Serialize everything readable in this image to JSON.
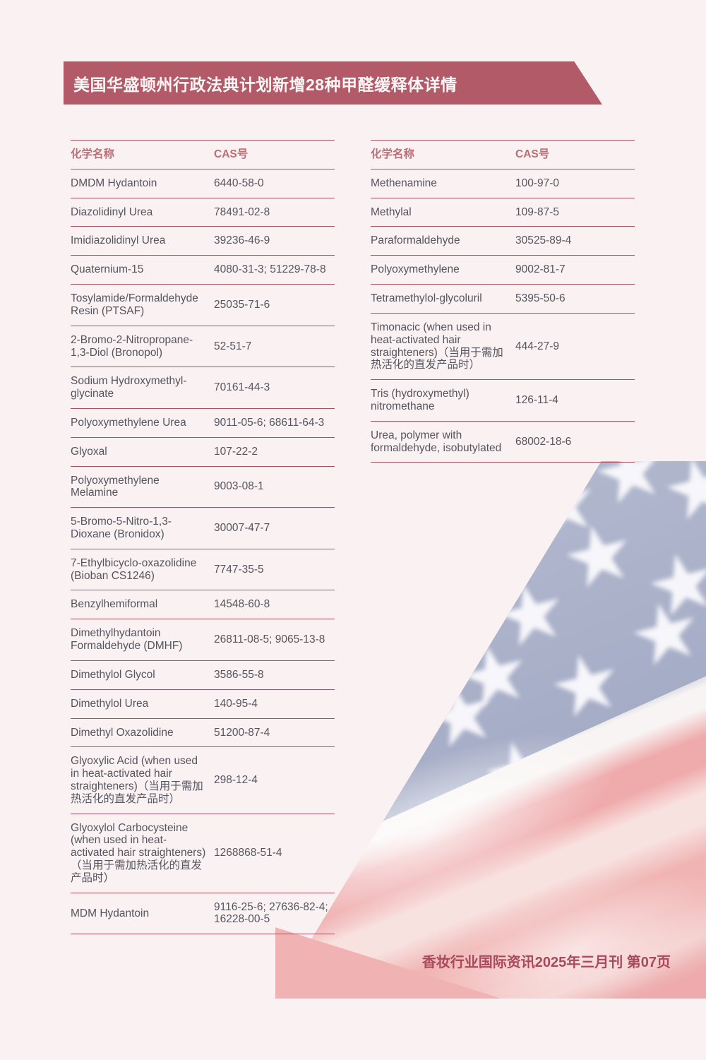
{
  "banner": {
    "title": "美国华盛顿州行政法典计划新增28种甲醛缓释体详情"
  },
  "tables": {
    "name_header": "化学名称",
    "cas_header": "CAS号",
    "left": [
      {
        "name": "DMDM Hydantoin",
        "cas": "6440-58-0"
      },
      {
        "name": "Diazolidinyl Urea",
        "cas": "78491-02-8"
      },
      {
        "name": "Imidiazolidinyl Urea",
        "cas": "39236-46-9"
      },
      {
        "name": "Quaternium-15",
        "cas": "4080-31-3; 51229-78-8"
      },
      {
        "name": "Tosylamide/Formaldehyde Resin (PTSAF)",
        "cas": "25035-71-6"
      },
      {
        "name": "2-Bromo-2-Nitropropane-1,3-Diol (Bronopol)",
        "cas": "52-51-7"
      },
      {
        "name": "Sodium Hydroxymethyl-glycinate",
        "cas": "70161-44-3"
      },
      {
        "name": "Polyoxymethylene Urea",
        "cas": "9011-05-6; 68611-64-3"
      },
      {
        "name": "Glyoxal",
        "cas": "107-22-2"
      },
      {
        "name": "Polyoxymethylene Melamine",
        "cas": "9003-08-1"
      },
      {
        "name": "5-Bromo-5-Nitro-1,3-Dioxane (Bronidox)",
        "cas": "30007-47-7"
      },
      {
        "name": "7-Ethylbicyclo-oxazolidine (Bioban CS1246)",
        "cas": "7747-35-5"
      },
      {
        "name": "Benzylhemiformal",
        "cas": "14548-60-8"
      },
      {
        "name": "Dimethylhydantoin Formaldehyde (DMHF)",
        "cas": "26811-08-5; 9065-13-8"
      },
      {
        "name": "Dimethylol Glycol",
        "cas": "3586-55-8"
      },
      {
        "name": "Dimethylol Urea",
        "cas": "140-95-4"
      },
      {
        "name": "Dimethyl Oxazolidine",
        "cas": "51200-87-4"
      },
      {
        "name": "Glyoxylic Acid (when used in heat-activated hair straighteners)（当用于需加热活化的直发产品时）",
        "cas": "298-12-4"
      },
      {
        "name": "Glyoxylol Carbocysteine (when used in heat-activated hair straighteners)（当用于需加热活化的直发产品时）",
        "cas": "1268868-51-4"
      },
      {
        "name": "MDM Hydantoin",
        "cas": "9116-25-6; 27636-82-4; 16228-00-5"
      }
    ],
    "right": [
      {
        "name": "Methenamine",
        "cas": "100-97-0"
      },
      {
        "name": "Methylal",
        "cas": "109-87-5"
      },
      {
        "name": "Paraformaldehyde",
        "cas": "30525-89-4"
      },
      {
        "name": "Polyoxymethylene",
        "cas": "9002-81-7"
      },
      {
        "name": "Tetramethylol-glycoluril",
        "cas": "5395-50-6"
      },
      {
        "name": "Timonacic (when used in heat-activated hair straighteners)（当用于需加热活化的直发产品时）",
        "cas": "444-27-9"
      },
      {
        "name": "Tris (hydroxymethyl) nitromethane",
        "cas": "126-11-4"
      },
      {
        "name": "Urea, polymer with formaldehyde, isobutylated",
        "cas": "68002-18-6"
      }
    ]
  },
  "footer": {
    "text": "香妆行业国际资讯2025年三月刊 第07页"
  },
  "decor": {
    "star_icon": "★",
    "colors": {
      "banner": "#b25a67",
      "line": "#a55362",
      "text": "#54555e",
      "header_text": "#bb6e75",
      "background": "#faf1f2",
      "flag_blue": "#a9b0c8",
      "flag_pink": "#efaaab"
    }
  }
}
